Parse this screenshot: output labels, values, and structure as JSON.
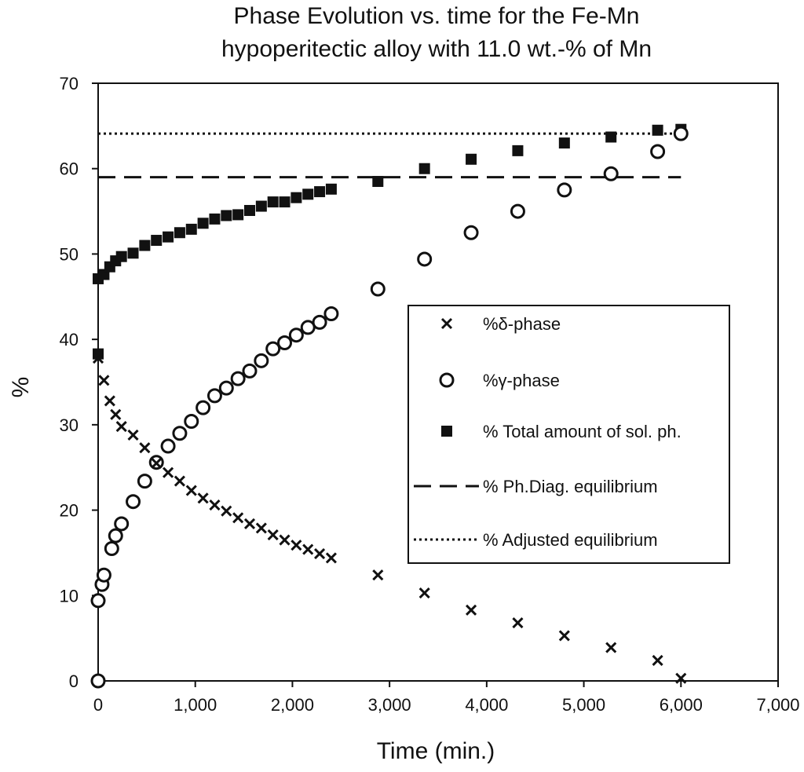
{
  "chart_data": {
    "type": "scatter",
    "title_lines": [
      "Phase Evolution vs. time for the Fe-Mn",
      "hypoperitectic alloy with 11.0 wt.-% of Mn"
    ],
    "xlabel": "Time (min.)",
    "ylabel": "%",
    "xlim": [
      0,
      7000
    ],
    "ylim": [
      0,
      70
    ],
    "x_ticks": [
      0,
      1000,
      2000,
      3000,
      4000,
      5000,
      6000,
      7000
    ],
    "x_tick_labels": [
      "0",
      "1,000",
      "2,000",
      "3,000",
      "4,000",
      "5,000",
      "6,000",
      "7,000"
    ],
    "y_ticks": [
      0,
      10,
      20,
      30,
      40,
      50,
      60,
      70
    ],
    "y_tick_labels": [
      "0",
      "10",
      "20",
      "30",
      "40",
      "50",
      "60",
      "70"
    ],
    "grid": false,
    "legend_position": "right",
    "series": [
      {
        "name": "%δ-phase",
        "marker": "x",
        "x": [
          0,
          60,
          120,
          180,
          240,
          360,
          480,
          600,
          720,
          840,
          960,
          1080,
          1200,
          1320,
          1440,
          1560,
          1680,
          1800,
          1920,
          2040,
          2160,
          2280,
          2400,
          2880,
          3360,
          3840,
          4320,
          4800,
          5280,
          5760,
          6000
        ],
        "y": [
          37.8,
          35.2,
          32.8,
          31.2,
          29.8,
          28.8,
          27.3,
          25.5,
          24.4,
          23.4,
          22.3,
          21.4,
          20.6,
          19.9,
          19.1,
          18.4,
          17.9,
          17.1,
          16.5,
          15.9,
          15.4,
          14.9,
          14.4,
          12.4,
          10.3,
          8.3,
          6.8,
          5.3,
          3.9,
          2.4,
          0.3
        ]
      },
      {
        "name": "%γ-phase",
        "marker": "circle",
        "x": [
          0,
          0,
          40,
          60,
          140,
          180,
          240,
          360,
          480,
          600,
          720,
          840,
          960,
          1080,
          1200,
          1320,
          1440,
          1560,
          1680,
          1800,
          1920,
          2040,
          2160,
          2280,
          2400,
          2880,
          3360,
          3840,
          4320,
          4800,
          5280,
          5760,
          6000
        ],
        "y": [
          0,
          9.4,
          11.3,
          12.4,
          15.5,
          17.0,
          18.4,
          21.0,
          23.4,
          25.6,
          27.5,
          29.0,
          30.4,
          32.0,
          33.4,
          34.3,
          35.4,
          36.3,
          37.5,
          38.9,
          39.6,
          40.5,
          41.4,
          42.0,
          43.0,
          45.9,
          49.4,
          52.5,
          55.0,
          57.5,
          59.4,
          62.0,
          64.1
        ]
      },
      {
        "name": "% Total amount of sol. ph.",
        "marker": "square",
        "x": [
          0,
          0,
          60,
          120,
          180,
          240,
          360,
          480,
          600,
          720,
          840,
          960,
          1080,
          1200,
          1320,
          1440,
          1560,
          1680,
          1800,
          1920,
          2040,
          2160,
          2280,
          2400,
          2880,
          3360,
          3840,
          4320,
          4800,
          5280,
          5760,
          6000
        ],
        "y": [
          38.3,
          47.1,
          47.6,
          48.5,
          49.2,
          49.7,
          50.1,
          51.0,
          51.6,
          52.0,
          52.5,
          52.9,
          53.6,
          54.1,
          54.5,
          54.6,
          55.1,
          55.6,
          56.1,
          56.1,
          56.6,
          57.0,
          57.3,
          57.6,
          58.5,
          60.0,
          61.1,
          62.1,
          63.0,
          63.7,
          64.5,
          64.6
        ]
      },
      {
        "name": "% Ph.Diag. equilibrium",
        "line_style": "dashed",
        "x": [
          0,
          6000
        ],
        "y": [
          59,
          59
        ]
      },
      {
        "name": "% Adjusted equilibrium",
        "line_style": "dotted",
        "x": [
          0,
          6000
        ],
        "y": [
          64.1,
          64.1
        ]
      }
    ]
  }
}
